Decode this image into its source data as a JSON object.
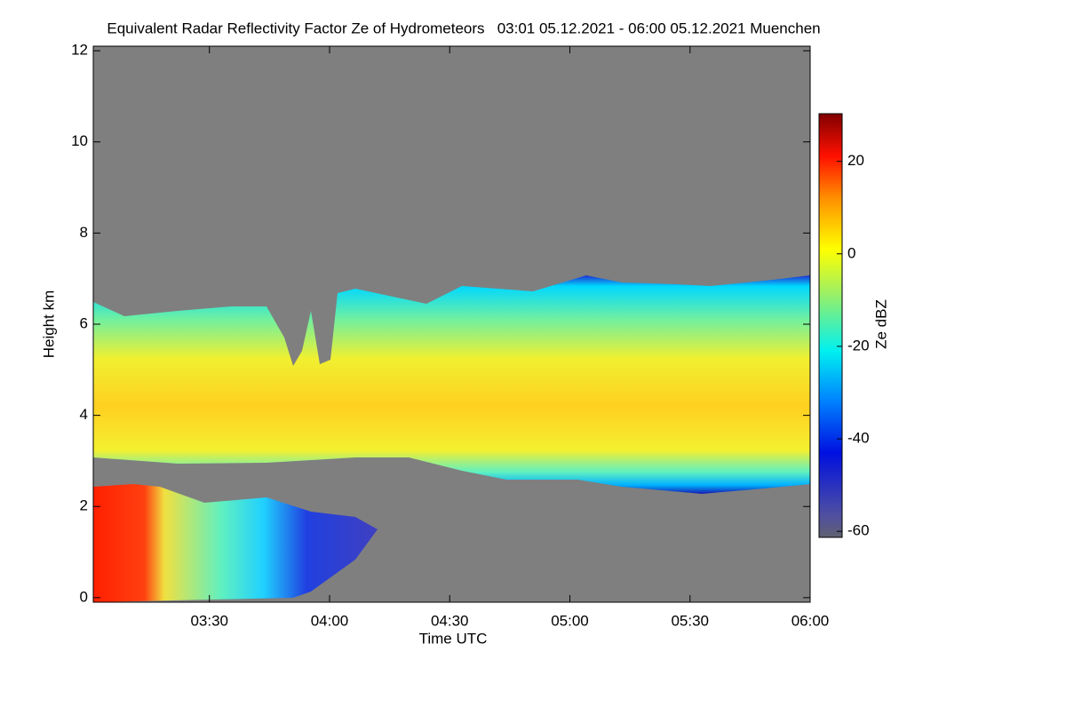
{
  "chart_data": {
    "type": "heatmap",
    "title": "Equivalent Radar Reflectivity Factor Ze of Hydrometeors   03:01 05.12.2021 - 06:00 05.12.2021 Muenchen",
    "x_label": "Time UTC",
    "y_label": "Height km",
    "colorbar_label": "Ze dBZ",
    "xlim": [
      3.0167,
      6.0
    ],
    "xticks": [
      {
        "value": 3.5,
        "label": "03:30"
      },
      {
        "value": 4.0,
        "label": "04:00"
      },
      {
        "value": 4.5,
        "label": "04:30"
      },
      {
        "value": 5.0,
        "label": "05:00"
      },
      {
        "value": 5.5,
        "label": "05:30"
      },
      {
        "value": 6.0,
        "label": "06:00"
      }
    ],
    "ylim": [
      -0.1,
      12.1
    ],
    "yticks": [
      0,
      2,
      4,
      6,
      8,
      10,
      12
    ],
    "clim": [
      -61.3,
      30.3
    ],
    "cticks": [
      -60,
      -40,
      -20,
      0,
      20
    ]
  }
}
